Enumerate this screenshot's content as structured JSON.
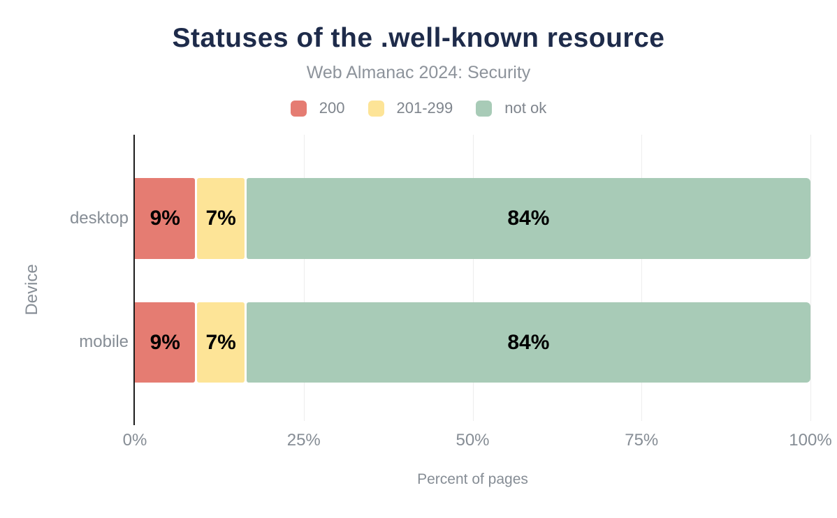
{
  "chart_data": {
    "type": "bar",
    "orientation": "horizontal",
    "stacked": true,
    "title": "Statuses of the .well-known resource",
    "subtitle": "Web Almanac 2024: Security",
    "categories": [
      "desktop",
      "mobile"
    ],
    "series": [
      {
        "name": "200",
        "color": "#e57c72",
        "values": [
          9,
          9
        ],
        "labels": [
          "9%",
          "9%"
        ]
      },
      {
        "name": "201-299",
        "color": "#fde497",
        "values": [
          7,
          7
        ],
        "labels": [
          "7%",
          "7%"
        ]
      },
      {
        "name": "not ok",
        "color": "#a8cbb7",
        "values": [
          84,
          84
        ],
        "labels": [
          "84%",
          "84%"
        ]
      }
    ],
    "xlabel": "Percent of pages",
    "ylabel": "Device",
    "xlim": [
      0,
      100
    ],
    "xticks": [
      "0%",
      "25%",
      "50%",
      "75%",
      "100%"
    ],
    "grid": "vertical",
    "legend_position": "top",
    "colors": {
      "title": "#1e2b4a",
      "subtitle": "#8d939b",
      "axis_text": "#868d95",
      "axis_line": "#1c1c1c",
      "gridline": "#ededed",
      "bar_label": "#000000"
    }
  }
}
